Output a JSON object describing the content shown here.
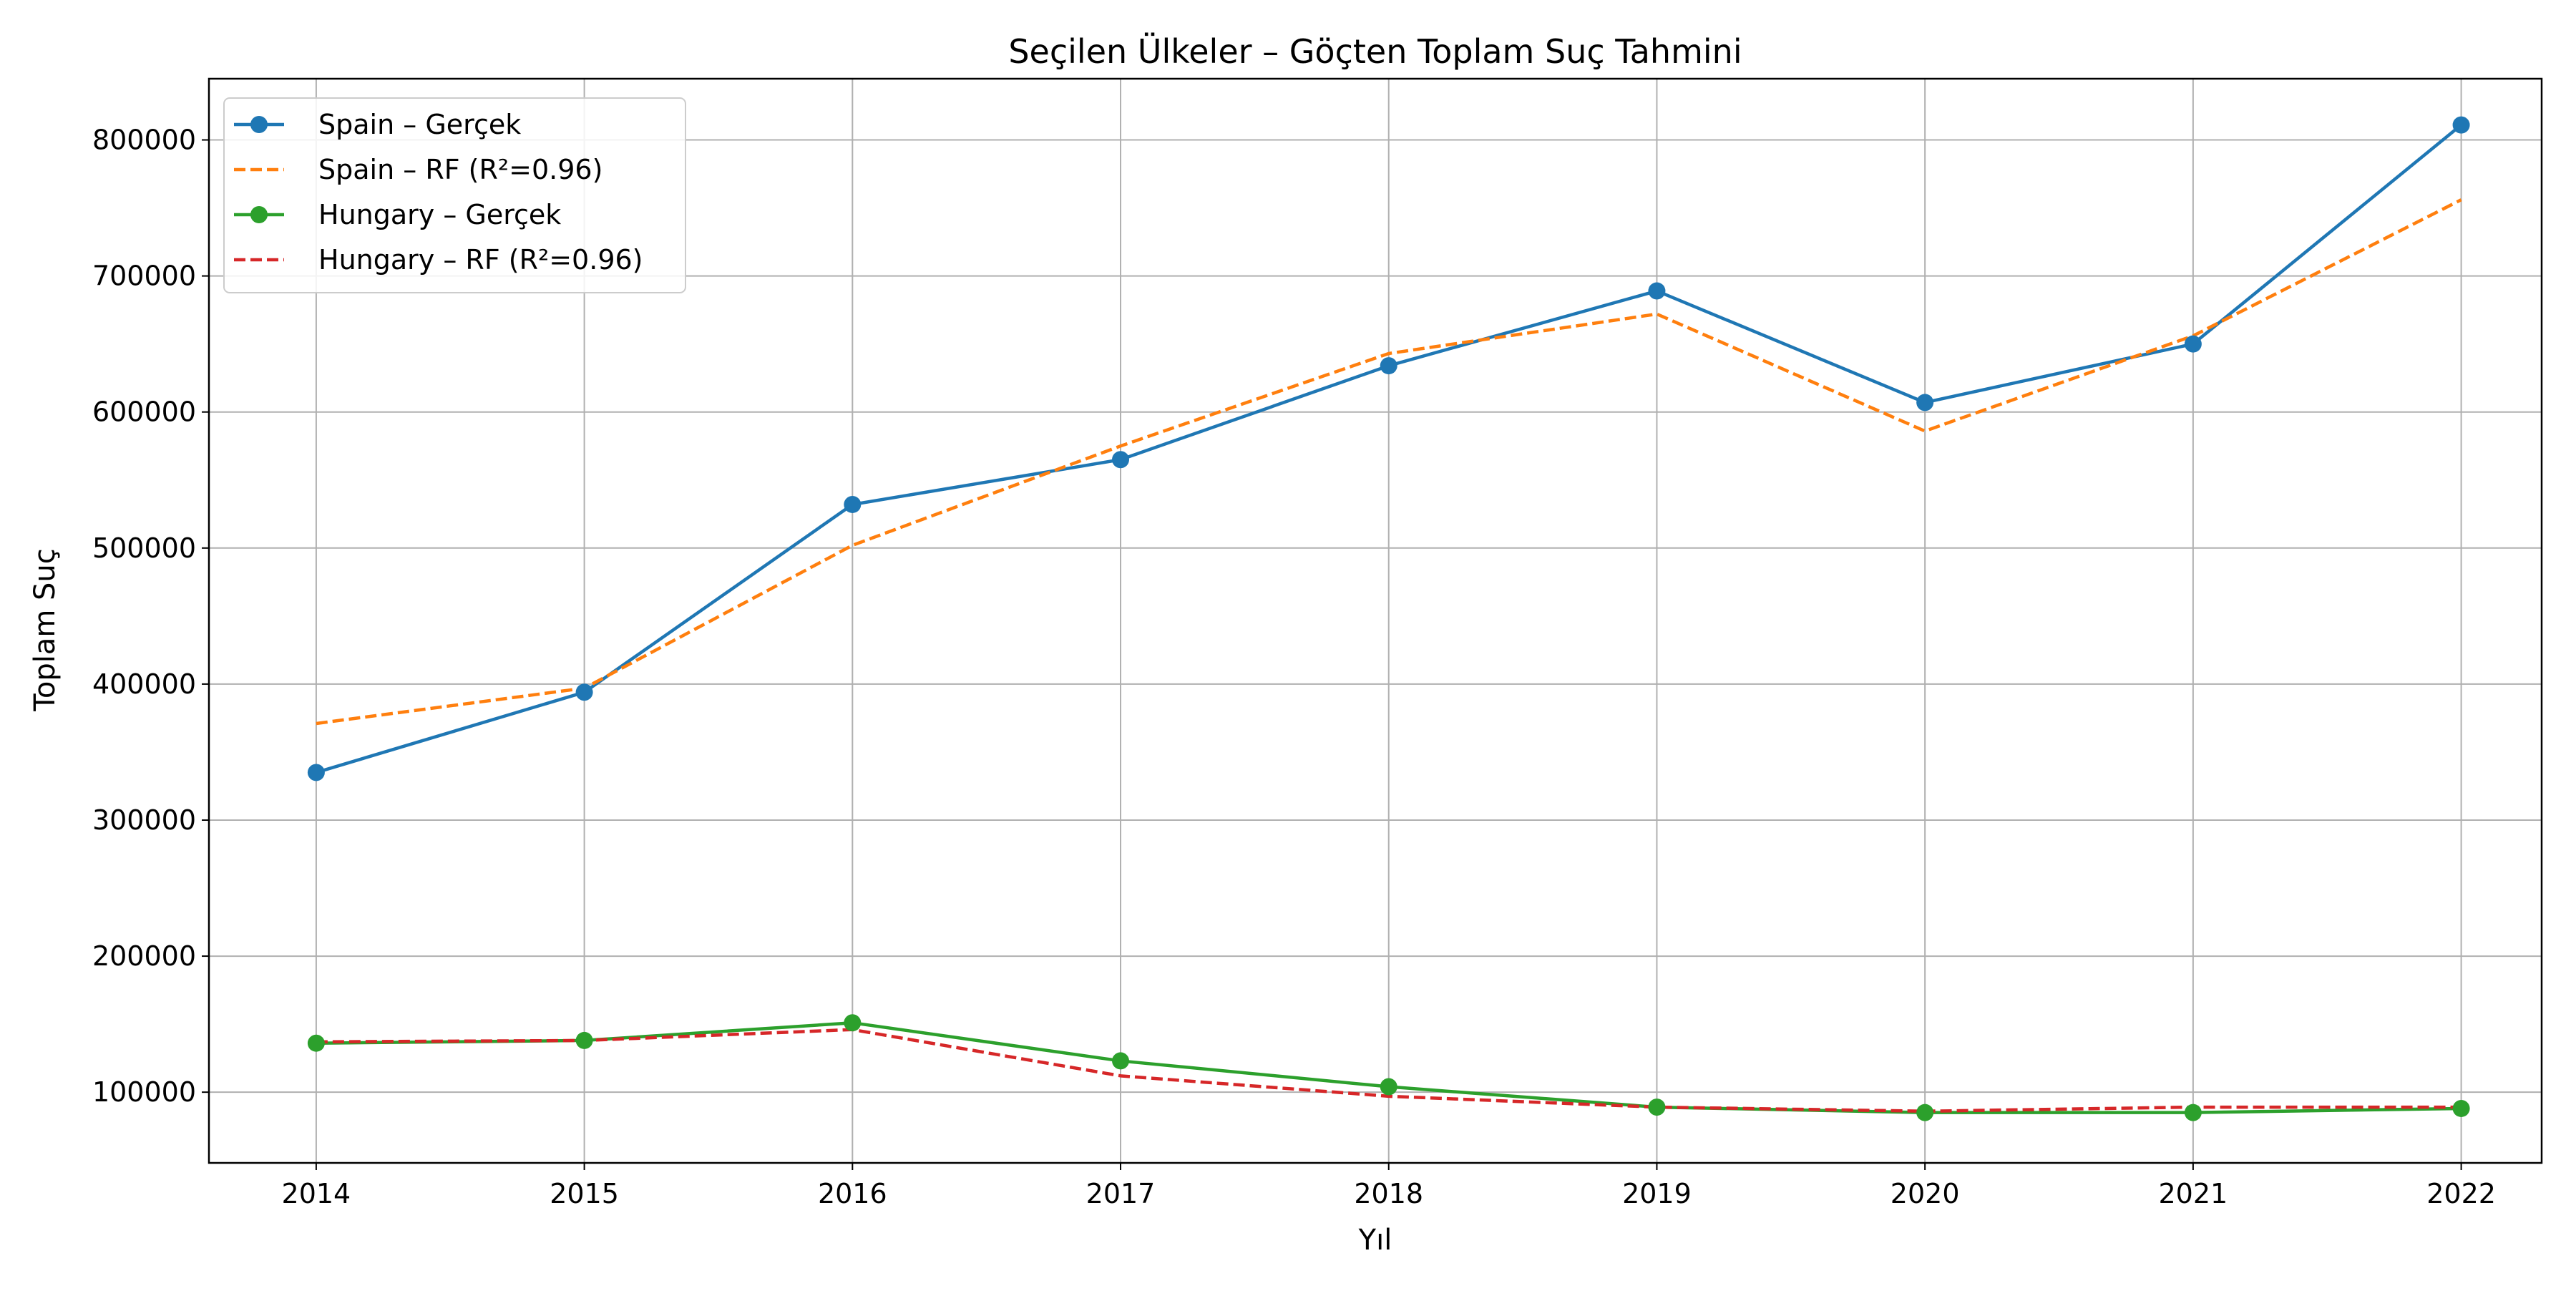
{
  "chart_data": {
    "type": "line",
    "title": "Seçilen Ülkeler – Göçten Toplam Suç Tahmini",
    "xlabel": "Yıl",
    "ylabel": "Toplam Suç",
    "x": [
      2014,
      2015,
      2016,
      2017,
      2018,
      2019,
      2020,
      2021,
      2022
    ],
    "xlim": [
      2013.6,
      2022.3
    ],
    "ylim": [
      48000,
      845000
    ],
    "yticks": [
      100000,
      200000,
      300000,
      400000,
      500000,
      600000,
      700000,
      800000
    ],
    "grid": true,
    "legend_position": "top-left",
    "series": [
      {
        "name": "Spain – Gerçek",
        "color": "#1f77b4",
        "style": "solid",
        "marker": "circle",
        "values": [
          335000,
          394000,
          532000,
          565000,
          634000,
          689000,
          607000,
          650000,
          811000
        ]
      },
      {
        "name": "Spain – RF (R²=0.96)",
        "color": "#ff7f0e",
        "style": "dashed",
        "marker": "none",
        "values": [
          371000,
          397000,
          502000,
          575000,
          643000,
          672000,
          586000,
          656000,
          756000
        ]
      },
      {
        "name": "Hungary – Gerçek",
        "color": "#2ca02c",
        "style": "solid",
        "marker": "circle",
        "values": [
          136000,
          138000,
          151000,
          123000,
          104000,
          89000,
          85000,
          85000,
          88000
        ]
      },
      {
        "name": "Hungary – RF (R²=0.96)",
        "color": "#d62728",
        "style": "dashed",
        "marker": "none",
        "values": [
          137000,
          138000,
          146000,
          112000,
          97000,
          89000,
          86000,
          89000,
          89000
        ]
      }
    ]
  }
}
